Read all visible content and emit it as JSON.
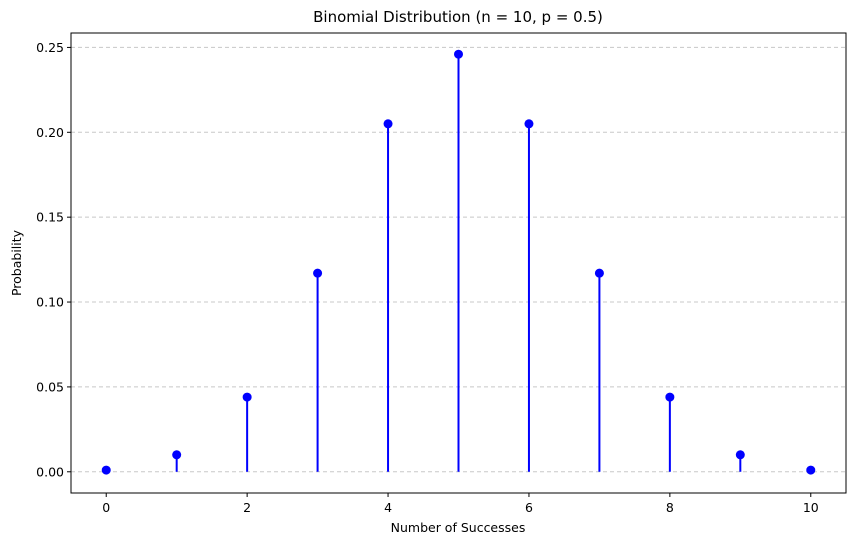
{
  "chart_data": {
    "type": "stem",
    "title": "Binomial Distribution (n = 10, p = 0.5)",
    "xlabel": "Number of Successes",
    "ylabel": "Probability",
    "x": [
      0,
      1,
      2,
      3,
      4,
      5,
      6,
      7,
      8,
      9,
      10
    ],
    "values": [
      0.001,
      0.01,
      0.044,
      0.117,
      0.205,
      0.246,
      0.205,
      0.117,
      0.044,
      0.01,
      0.001
    ],
    "xlim": [
      -0.5,
      10.5
    ],
    "ylim": [
      -0.0125,
      0.2585
    ],
    "xticks": [
      0,
      2,
      4,
      6,
      8,
      10
    ],
    "xtick_labels": [
      "0",
      "2",
      "4",
      "6",
      "8",
      "10"
    ],
    "yticks": [
      0,
      0.05,
      0.1,
      0.15,
      0.2,
      0.25
    ],
    "ytick_labels": [
      "0.00",
      "0.05",
      "0.10",
      "0.15",
      "0.20",
      "0.25"
    ],
    "grid": "y-dashed",
    "color": "#0000ff"
  }
}
